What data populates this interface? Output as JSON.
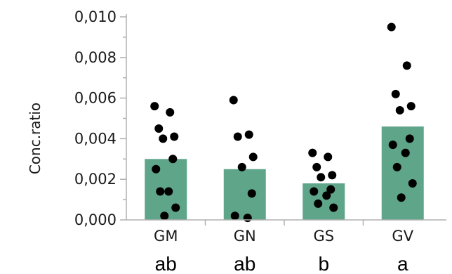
{
  "chart_data": {
    "type": "bar",
    "ylabel": "Conc.ratio",
    "ylim": [
      0,
      0.01
    ],
    "yticks": [
      "0,000",
      "0,002",
      "0,004",
      "0,006",
      "0,008",
      "0,010"
    ],
    "categories": [
      "GM",
      "GN",
      "GS",
      "GV"
    ],
    "values": [
      0.003,
      0.0025,
      0.0018,
      0.0046
    ],
    "group_letters": [
      "ab",
      "ab",
      "b",
      "a"
    ],
    "points": [
      [
        0.0056,
        0.0053,
        0.0045,
        0.0041,
        0.004,
        0.003,
        0.0025,
        0.0014,
        0.0014,
        0.0006,
        0.0002
      ],
      [
        0.0059,
        0.0042,
        0.0041,
        0.0031,
        0.0026,
        0.0013,
        0.0002,
        0.0001
      ],
      [
        0.0033,
        0.0031,
        0.0026,
        0.0022,
        0.0021,
        0.0015,
        0.0014,
        0.0012,
        0.0008,
        0.0006
      ],
      [
        0.0095,
        0.0076,
        0.0062,
        0.0056,
        0.0054,
        0.004,
        0.0037,
        0.0033,
        0.0026,
        0.0018,
        0.0011
      ]
    ],
    "grid": false,
    "colors": {
      "bar": "#5fa58a",
      "point": "#000000",
      "axis": "#b0b0b0"
    }
  }
}
